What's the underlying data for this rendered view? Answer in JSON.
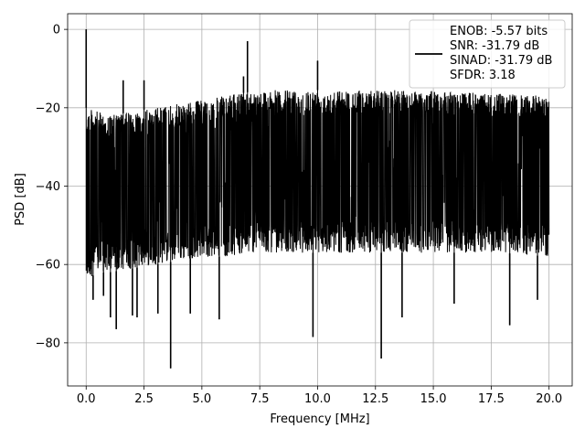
{
  "chart_data": {
    "type": "line",
    "xlabel": "Frequency [MHz]",
    "ylabel": "PSD [dB]",
    "xlim": [
      -0.8,
      21.0
    ],
    "ylim": [
      -91,
      4
    ],
    "x_ticks": [
      0.0,
      2.5,
      5.0,
      7.5,
      10.0,
      12.5,
      15.0,
      17.5,
      20.0
    ],
    "x_tick_labels": [
      "0.0",
      "2.5",
      "5.0",
      "7.5",
      "10.0",
      "12.5",
      "15.0",
      "17.5",
      "20.0"
    ],
    "y_ticks": [
      0,
      -20,
      -40,
      -60,
      -80
    ],
    "y_tick_labels": [
      "0",
      "−20",
      "−40",
      "−60",
      "−80"
    ],
    "grid": true,
    "legend_position": "top-right",
    "series": [
      {
        "name": "ENOB: -5.57 bits\nSNR: -31.79 dB\nSINAD: -31.79 dB\nSFDR: 3.18",
        "color": "#000000",
        "noise_envelope": {
          "x": [
            0.0,
            0.5,
            1.0,
            2.0,
            3.0,
            4.0,
            5.0,
            6.0,
            7.0,
            8.0,
            10.0,
            12.0,
            14.0,
            16.0,
            18.0,
            20.0
          ],
          "upper": [
            -20,
            -21,
            -22,
            -21,
            -20,
            -19,
            -18,
            -17,
            -16,
            -15.5,
            -15.5,
            -15.5,
            -15.5,
            -16,
            -16.5,
            -17
          ],
          "lower": [
            -64,
            -62,
            -62,
            -61,
            -60,
            -59,
            -58,
            -58,
            -57,
            -57,
            -57,
            -57,
            -57,
            -57,
            -57,
            -58
          ]
        },
        "peaks": [
          {
            "x": 0.0,
            "y": 0.0
          },
          {
            "x": 1.6,
            "y": -13.0
          },
          {
            "x": 2.5,
            "y": -13.0
          },
          {
            "x": 6.8,
            "y": -12.0
          },
          {
            "x": 6.97,
            "y": -3.0
          },
          {
            "x": 10.0,
            "y": -8.0
          }
        ],
        "dips": [
          {
            "x": 3.65,
            "y": -86.5
          },
          {
            "x": 12.75,
            "y": -84.0
          },
          {
            "x": 9.8,
            "y": -78.5
          },
          {
            "x": 18.3,
            "y": -75.5
          },
          {
            "x": 1.3,
            "y": -76.5
          },
          {
            "x": 1.05,
            "y": -73.5
          },
          {
            "x": 5.75,
            "y": -74.0
          },
          {
            "x": 13.65,
            "y": -73.5
          },
          {
            "x": 4.5,
            "y": -72.5
          },
          {
            "x": 3.1,
            "y": -72.5
          },
          {
            "x": 2.0,
            "y": -73.0
          },
          {
            "x": 2.2,
            "y": -73.5
          },
          {
            "x": 15.9,
            "y": -70.0
          },
          {
            "x": 19.5,
            "y": -69.0
          },
          {
            "x": 0.3,
            "y": -69.0
          },
          {
            "x": 0.75,
            "y": -68.0
          }
        ]
      }
    ]
  }
}
